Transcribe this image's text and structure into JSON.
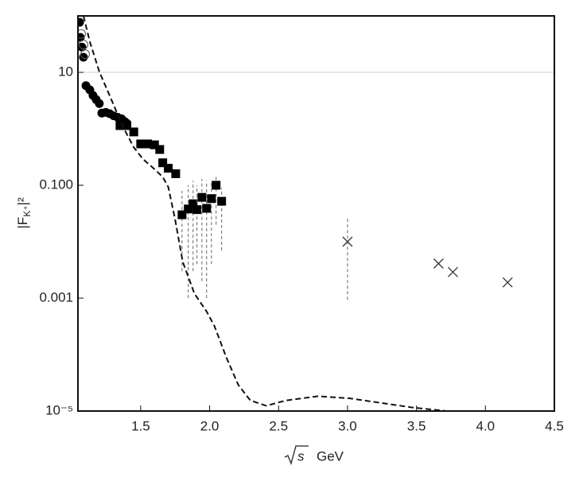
{
  "chart_data": {
    "type": "scatter",
    "scale": "log",
    "xlabel_root": "s",
    "xlabel_unit": "GeV",
    "ylabel_parts": [
      "|F",
      "K⁺",
      "|²"
    ],
    "xlim": [
      1.045,
      4.5
    ],
    "ylim": [
      1e-05,
      100
    ],
    "xticks": [
      1.5,
      {
        "value": 2.0,
        "label": "2.0"
      },
      2.5,
      {
        "value": 3.0,
        "label": "3.0"
      },
      3.5,
      {
        "value": 4.0,
        "label": "4.0"
      },
      4.5
    ],
    "yticks": [
      10,
      {
        "value": 0.1,
        "label": "0.100"
      },
      0.001,
      {
        "value": 1e-05,
        "label": "10⁻⁵"
      }
    ],
    "hline": 10,
    "series": [
      {
        "marker": "circle",
        "color": "#000000",
        "x": [
          1.057,
          1.062,
          1.074,
          1.085,
          1.103,
          1.131,
          1.154,
          1.177,
          1.2,
          1.218,
          1.247,
          1.275,
          1.304,
          1.333,
          1.362,
          1.385,
          1.4
        ],
        "values": [
          77,
          41.7,
          28,
          18.5,
          5.8,
          4.9,
          3.9,
          3.3,
          2.8,
          1.9,
          1.95,
          1.85,
          1.7,
          1.6,
          1.5,
          1.34,
          1.25
        ]
      },
      {
        "marker": "open-circle",
        "color": "#555555",
        "x": [
          1.068,
          1.085,
          1.097
        ],
        "values": [
          48,
          31,
          21
        ]
      },
      {
        "marker": "square",
        "color": "#000000",
        "x": [
          1.35,
          1.4,
          1.45,
          1.5,
          1.55,
          1.6,
          1.638,
          1.66,
          1.7,
          1.754,
          1.8,
          1.845,
          1.88,
          1.908,
          1.944,
          1.978,
          2.013,
          2.047,
          2.087
        ],
        "values": [
          1.14,
          1.14,
          0.88,
          0.54,
          0.54,
          0.52,
          0.43,
          0.25,
          0.2,
          0.16,
          0.03,
          0.038,
          0.047,
          0.037,
          0.061,
          0.039,
          0.058,
          0.1,
          0.052
        ],
        "lower": [
          null,
          null,
          null,
          null,
          null,
          null,
          null,
          null,
          null,
          null,
          0.003,
          0.001,
          0.003,
          0.004,
          0.002,
          0.001,
          0.004,
          0.02,
          0.007
        ],
        "upper": [
          null,
          null,
          null,
          null,
          null,
          null,
          null,
          null,
          null,
          null,
          0.08,
          0.1,
          0.12,
          0.1,
          0.13,
          0.12,
          0.12,
          0.14,
          0.09
        ]
      },
      {
        "marker": "cross",
        "color": "#333333",
        "x": [
          3.0,
          3.66,
          3.764,
          4.161
        ],
        "values": [
          0.01,
          0.0041,
          0.0029,
          0.0019
        ],
        "lower": [
          0.00093,
          null,
          null,
          null
        ],
        "upper": [
          0.026,
          null,
          null,
          null
        ]
      },
      {
        "marker": "dashed-line",
        "color": "#111111",
        "x": [
          1.085,
          1.131,
          1.2,
          1.287,
          1.373,
          1.45,
          1.517,
          1.603,
          1.66,
          1.7,
          1.748,
          1.805,
          1.89,
          1.978,
          2.035,
          2.122,
          2.208,
          2.295,
          2.41,
          2.554,
          2.785,
          3.015,
          3.245,
          3.476,
          3.718
        ],
        "values": [
          100,
          35,
          10.3,
          3.3,
          1.07,
          0.47,
          0.29,
          0.19,
          0.14,
          0.093,
          0.026,
          0.0044,
          0.0012,
          0.00058,
          0.00032,
          8.8e-05,
          2.9e-05,
          1.54e-05,
          1.24e-05,
          1.54e-05,
          1.83e-05,
          1.68e-05,
          1.39e-05,
          1.15e-05,
          1e-05
        ]
      }
    ]
  }
}
